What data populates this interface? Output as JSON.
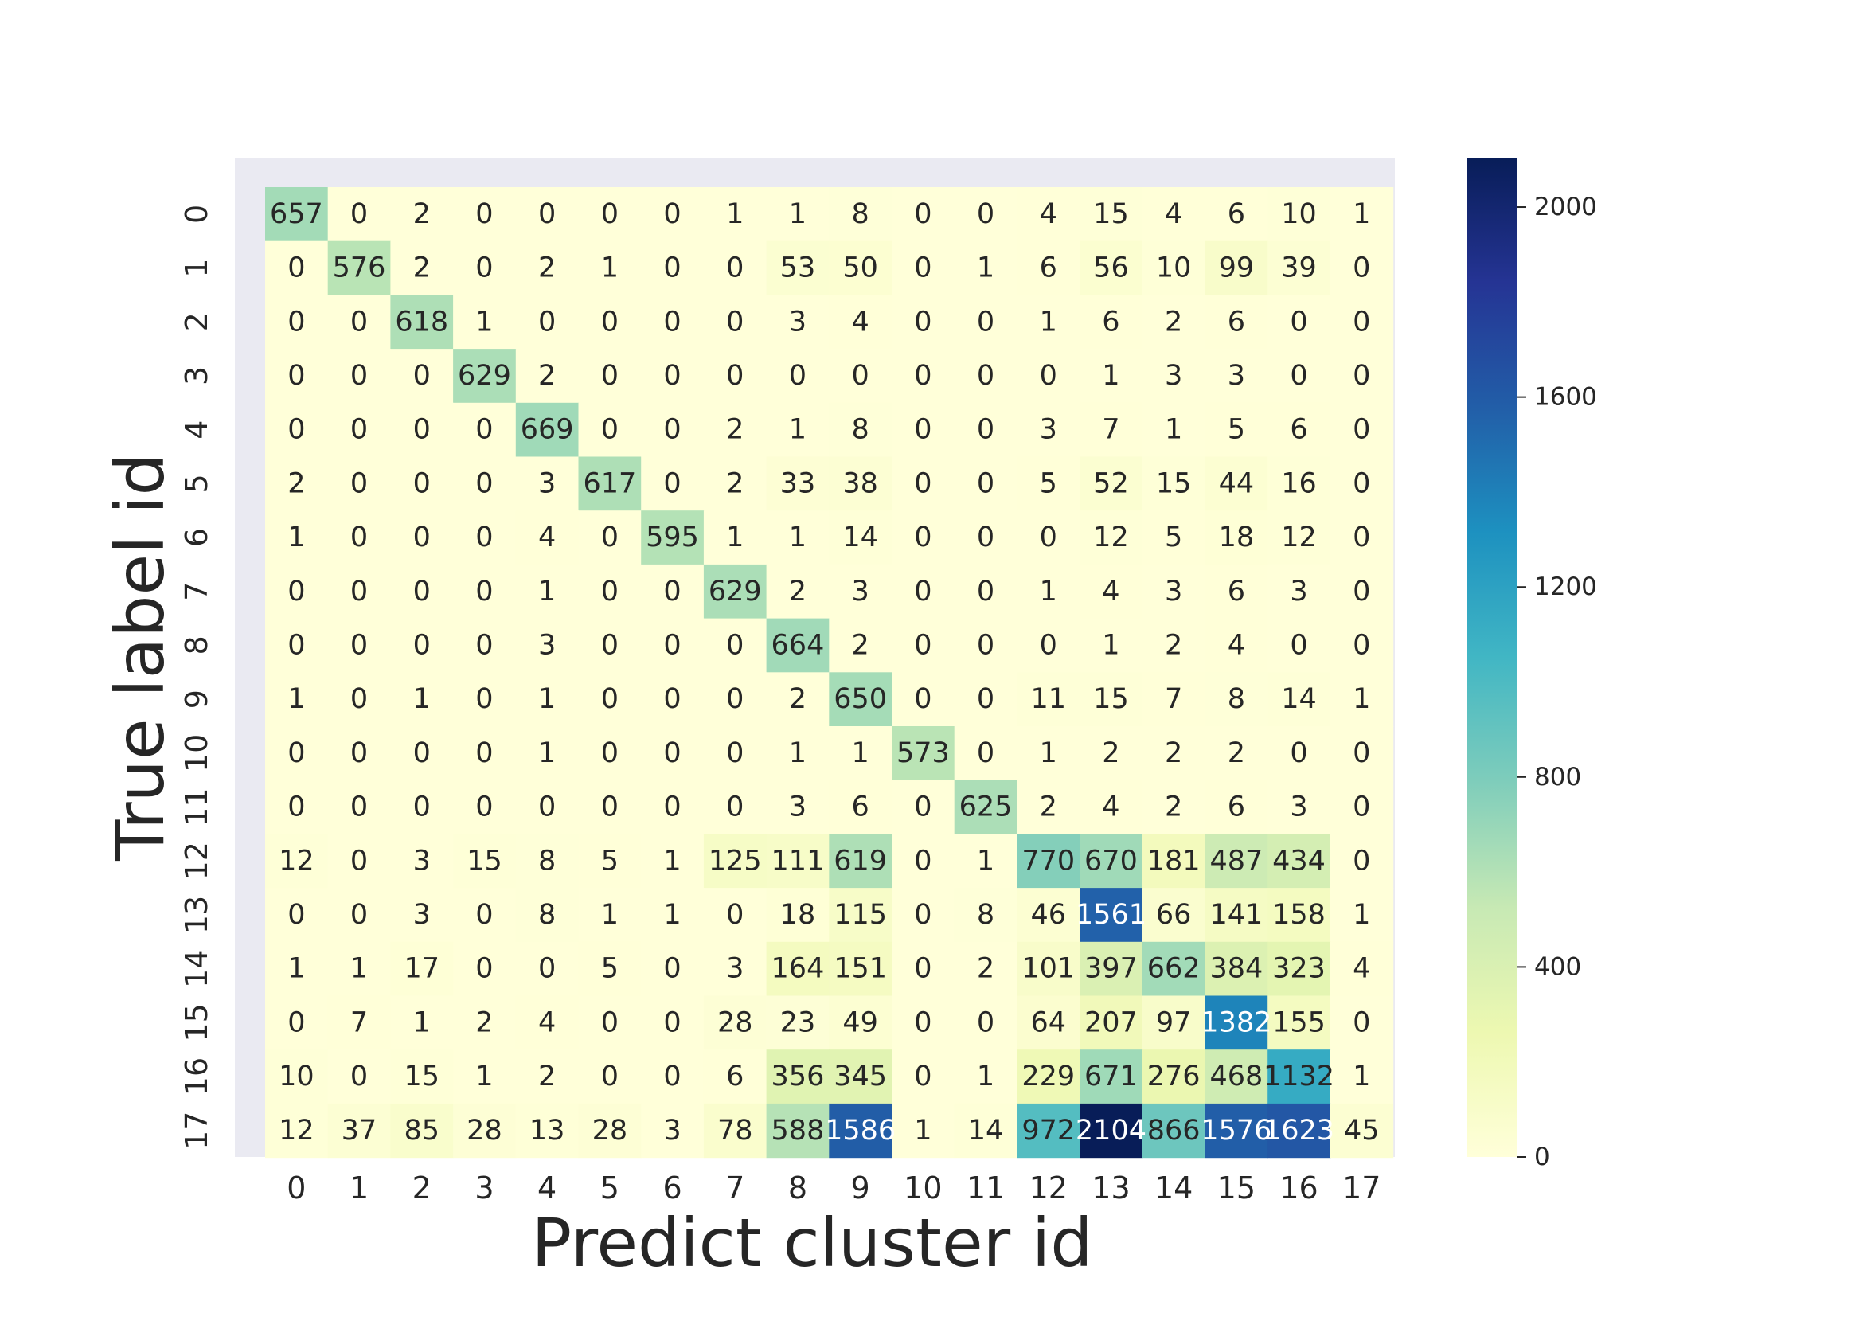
{
  "chart_data": {
    "type": "heatmap",
    "title": "",
    "xlabel": "Predict cluster id",
    "ylabel": "True label id",
    "x_ticks": [
      "0",
      "1",
      "2",
      "3",
      "4",
      "5",
      "6",
      "7",
      "8",
      "9",
      "10",
      "11",
      "12",
      "13",
      "14",
      "15",
      "16",
      "17"
    ],
    "y_ticks": [
      "0",
      "1",
      "2",
      "3",
      "4",
      "5",
      "6",
      "7",
      "8",
      "9",
      "10",
      "11",
      "12",
      "13",
      "14",
      "15",
      "16",
      "17"
    ],
    "values": [
      [
        657,
        0,
        2,
        0,
        0,
        0,
        0,
        1,
        1,
        8,
        0,
        0,
        4,
        15,
        4,
        6,
        10,
        1
      ],
      [
        0,
        576,
        2,
        0,
        2,
        1,
        0,
        0,
        53,
        50,
        0,
        1,
        6,
        56,
        10,
        99,
        39,
        0
      ],
      [
        0,
        0,
        618,
        1,
        0,
        0,
        0,
        0,
        3,
        4,
        0,
        0,
        1,
        6,
        2,
        6,
        0,
        0
      ],
      [
        0,
        0,
        0,
        629,
        2,
        0,
        0,
        0,
        0,
        0,
        0,
        0,
        0,
        1,
        3,
        3,
        0,
        0
      ],
      [
        0,
        0,
        0,
        0,
        669,
        0,
        0,
        2,
        1,
        8,
        0,
        0,
        3,
        7,
        1,
        5,
        6,
        0
      ],
      [
        2,
        0,
        0,
        0,
        3,
        617,
        0,
        2,
        33,
        38,
        0,
        0,
        5,
        52,
        15,
        44,
        16,
        0
      ],
      [
        1,
        0,
        0,
        0,
        4,
        0,
        595,
        1,
        1,
        14,
        0,
        0,
        0,
        12,
        5,
        18,
        12,
        0
      ],
      [
        0,
        0,
        0,
        0,
        1,
        0,
        0,
        629,
        2,
        3,
        0,
        0,
        1,
        4,
        3,
        6,
        3,
        0
      ],
      [
        0,
        0,
        0,
        0,
        3,
        0,
        0,
        0,
        664,
        2,
        0,
        0,
        0,
        1,
        2,
        4,
        0,
        0
      ],
      [
        1,
        0,
        1,
        0,
        1,
        0,
        0,
        0,
        2,
        650,
        0,
        0,
        11,
        15,
        7,
        8,
        14,
        1
      ],
      [
        0,
        0,
        0,
        0,
        1,
        0,
        0,
        0,
        1,
        1,
        573,
        0,
        1,
        2,
        2,
        2,
        0,
        0
      ],
      [
        0,
        0,
        0,
        0,
        0,
        0,
        0,
        0,
        3,
        6,
        0,
        625,
        2,
        4,
        2,
        6,
        3,
        0
      ],
      [
        12,
        0,
        3,
        15,
        8,
        5,
        1,
        125,
        111,
        619,
        0,
        1,
        770,
        670,
        181,
        487,
        434,
        0
      ],
      [
        0,
        0,
        3,
        0,
        8,
        1,
        1,
        0,
        18,
        115,
        0,
        8,
        46,
        1561,
        66,
        141,
        158,
        1
      ],
      [
        1,
        1,
        17,
        0,
        0,
        5,
        0,
        3,
        164,
        151,
        0,
        2,
        101,
        397,
        662,
        384,
        323,
        4
      ],
      [
        0,
        7,
        1,
        2,
        4,
        0,
        0,
        28,
        23,
        49,
        0,
        0,
        64,
        207,
        97,
        1382,
        155,
        0
      ],
      [
        10,
        0,
        15,
        1,
        2,
        0,
        0,
        6,
        356,
        345,
        0,
        1,
        229,
        671,
        276,
        468,
        1132,
        1
      ],
      [
        12,
        37,
        85,
        28,
        13,
        28,
        3,
        78,
        588,
        1586,
        1,
        14,
        972,
        2104,
        866,
        1576,
        1623,
        45
      ]
    ],
    "colormap": "YlGnBu",
    "vmin": 0,
    "vmax": 2104,
    "colorbar_ticks": [
      0,
      400,
      800,
      1200,
      1600,
      2000
    ],
    "colorbar_tick_labels": [
      "0",
      "400",
      "800",
      "1200",
      "1600",
      "2000"
    ],
    "grid": false,
    "colors": {
      "axes_background": "#eaeaf2",
      "text_dark": "#262626",
      "text_light": "#ffffff"
    }
  }
}
